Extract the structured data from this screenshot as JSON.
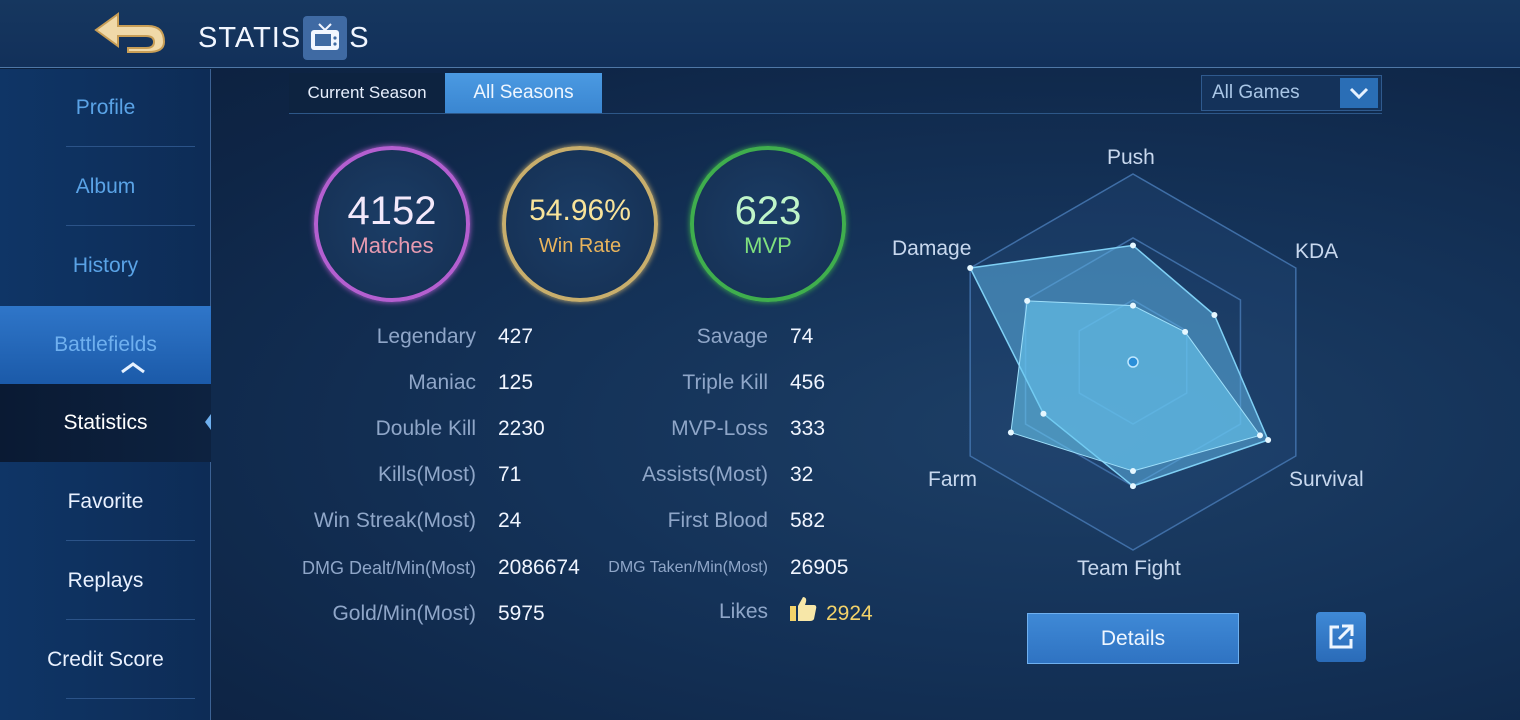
{
  "header": {
    "title_left": "STATIS",
    "title_right": "S",
    "back_icon": "back-arrow-icon",
    "title_icon": "tv-icon"
  },
  "sidebar": {
    "items": [
      {
        "label": "Profile"
      },
      {
        "label": "Album"
      },
      {
        "label": "History"
      },
      {
        "label": "Battlefields"
      },
      {
        "label": "Statistics"
      },
      {
        "label": "Favorite"
      },
      {
        "label": "Replays"
      },
      {
        "label": "Credit Score"
      }
    ]
  },
  "tabs": {
    "current_season": "Current Season",
    "all_seasons": "All Seasons"
  },
  "filter": {
    "selected": "All Games"
  },
  "summary": {
    "matches_value": "4152",
    "matches_label": "Matches",
    "winrate_value": "54.96%",
    "winrate_label": "Win Rate",
    "mvp_value": "623",
    "mvp_label": "MVP"
  },
  "stats_left": [
    {
      "label": "Legendary",
      "value": "427"
    },
    {
      "label": "Maniac",
      "value": "125"
    },
    {
      "label": "Double Kill",
      "value": "2230"
    },
    {
      "label": "Kills(Most)",
      "value": "71"
    },
    {
      "label": "Win Streak(Most)",
      "value": "24"
    },
    {
      "label": "DMG Dealt/Min(Most)",
      "value": "2086674"
    },
    {
      "label": "Gold/Min(Most)",
      "value": "5975"
    }
  ],
  "stats_right": [
    {
      "label": "Savage",
      "value": "74"
    },
    {
      "label": "Triple Kill",
      "value": "456"
    },
    {
      "label": "MVP-Loss",
      "value": "333"
    },
    {
      "label": "Assists(Most)",
      "value": "32"
    },
    {
      "label": "First Blood",
      "value": "582"
    },
    {
      "label": "DMG Taken/Min(Most)",
      "value": "26905"
    },
    {
      "label": "Likes",
      "value": "2924"
    }
  ],
  "radar": {
    "labels": [
      "Push",
      "KDA",
      "Survival",
      "Team Fight",
      "Farm",
      "Damage"
    ],
    "outer_values": [
      0.62,
      0.5,
      0.83,
      0.66,
      0.55,
      1.0
    ],
    "inner_values": [
      0.3,
      0.32,
      0.78,
      0.58,
      0.75,
      0.65
    ]
  },
  "buttons": {
    "details": "Details",
    "share_icon": "share-icon"
  },
  "colors": {
    "matches_ring": "#b45fd0",
    "winrate_ring": "#c8ae6c",
    "mvp_ring": "#3fae4d",
    "accent": "#3a86d1",
    "likes": "#f3d36a"
  }
}
